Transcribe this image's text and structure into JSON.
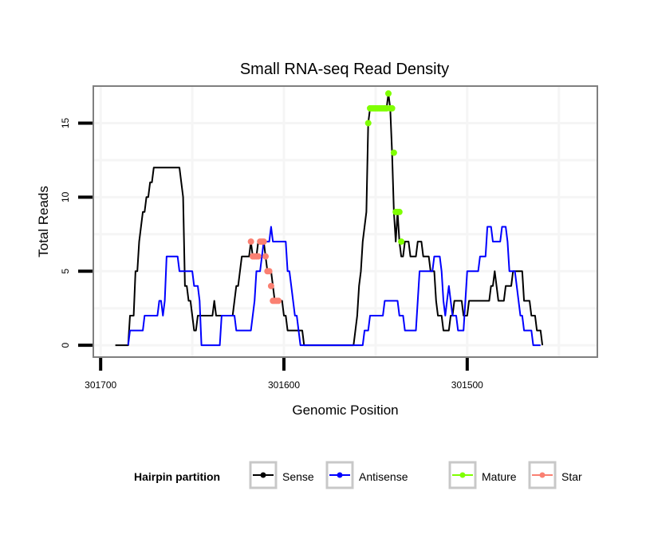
{
  "chart_data": {
    "type": "line",
    "title": "Small RNA-seq Read Density",
    "xlabel": "Genomic Position",
    "ylabel": "Total Reads",
    "x_reversed": true,
    "xlim": [
      301704,
      301429
    ],
    "ylim": [
      -0.8,
      17.5
    ],
    "x_ticks": [
      301700,
      301600,
      301500
    ],
    "x_tick_labels": [
      "301700",
      "301600",
      "301500"
    ],
    "y_ticks": [
      0,
      5,
      10,
      15
    ],
    "y_tick_labels": [
      "0",
      "5",
      "10",
      "15"
    ],
    "grid": true,
    "legend": {
      "title": "Hairpin partition",
      "position": "bottom",
      "entries": [
        {
          "name": "Sense",
          "color": "#000000"
        },
        {
          "name": "Antisense",
          "color": "#0000FF"
        },
        {
          "name": "Mature",
          "color": "#7FFF00"
        },
        {
          "name": "Star",
          "color": "#FA8072"
        }
      ]
    },
    "series": [
      {
        "name": "Sense",
        "color": "#000000",
        "points": [
          [
            301692,
            0
          ],
          [
            301685,
            0
          ],
          [
            301684,
            2
          ],
          [
            301682,
            2
          ],
          [
            301681,
            5
          ],
          [
            301680,
            5
          ],
          [
            301679,
            7
          ],
          [
            301678,
            8
          ],
          [
            301677,
            9
          ],
          [
            301676,
            9
          ],
          [
            301675,
            10
          ],
          [
            301674,
            10
          ],
          [
            301673,
            11
          ],
          [
            301672,
            11
          ],
          [
            301671,
            12
          ],
          [
            301657,
            12
          ],
          [
            301655,
            10
          ],
          [
            301654,
            4
          ],
          [
            301653,
            4
          ],
          [
            301652,
            3
          ],
          [
            301651,
            3
          ],
          [
            301650,
            2
          ],
          [
            301649,
            1
          ],
          [
            301648,
            1
          ],
          [
            301647,
            2
          ],
          [
            301639,
            2
          ],
          [
            301638,
            3
          ],
          [
            301637,
            2
          ],
          [
            301628,
            2
          ],
          [
            301627,
            3
          ],
          [
            301626,
            4
          ],
          [
            301625,
            4
          ],
          [
            301624,
            5
          ],
          [
            301623,
            6
          ],
          [
            301619,
            6
          ],
          [
            301618,
            7
          ],
          [
            301617,
            6
          ],
          [
            301615,
            6
          ],
          [
            301614,
            7
          ],
          [
            301611,
            7
          ],
          [
            301610,
            6
          ],
          [
            301609,
            5
          ],
          [
            301607,
            5
          ],
          [
            301606,
            4
          ],
          [
            301605,
            3
          ],
          [
            301601,
            3
          ],
          [
            301600,
            2
          ],
          [
            301599,
            2
          ],
          [
            301598,
            1
          ],
          [
            301590,
            1
          ],
          [
            301589,
            0
          ],
          [
            301562,
            0
          ],
          [
            301561,
            1
          ],
          [
            301560,
            2
          ],
          [
            301559,
            4
          ],
          [
            301558,
            5
          ],
          [
            301557,
            7
          ],
          [
            301556,
            8
          ],
          [
            301555,
            9
          ],
          [
            301554,
            15
          ],
          [
            301553,
            16
          ],
          [
            301544,
            16
          ],
          [
            301543,
            17
          ],
          [
            301542,
            16
          ],
          [
            301541,
            13
          ],
          [
            301540,
            9
          ],
          [
            301539,
            7
          ],
          [
            301538,
            9
          ],
          [
            301537,
            7
          ],
          [
            301536,
            6
          ],
          [
            301535,
            6
          ],
          [
            301534,
            7
          ],
          [
            301532,
            7
          ],
          [
            301531,
            6
          ],
          [
            301528,
            6
          ],
          [
            301527,
            7
          ],
          [
            301525,
            7
          ],
          [
            301524,
            6
          ],
          [
            301521,
            6
          ],
          [
            301520,
            5
          ],
          [
            301518,
            5
          ],
          [
            301517,
            3
          ],
          [
            301516,
            2
          ],
          [
            301515,
            2
          ],
          [
            301514,
            2
          ],
          [
            301513,
            1
          ],
          [
            301510,
            1
          ],
          [
            301509,
            2
          ],
          [
            301508,
            2
          ],
          [
            301507,
            3
          ],
          [
            301503,
            3
          ],
          [
            301502,
            2
          ],
          [
            301500,
            2
          ],
          [
            301499,
            3
          ],
          [
            301488,
            3
          ],
          [
            301487,
            4
          ],
          [
            301486,
            4
          ],
          [
            301485,
            5
          ],
          [
            301484,
            4
          ],
          [
            301483,
            3
          ],
          [
            301480,
            3
          ],
          [
            301479,
            4
          ],
          [
            301476,
            4
          ],
          [
            301475,
            5
          ],
          [
            301470,
            5
          ],
          [
            301469,
            3
          ],
          [
            301466,
            3
          ],
          [
            301465,
            2
          ],
          [
            301463,
            2
          ],
          [
            301462,
            1
          ],
          [
            301460,
            1
          ],
          [
            301459,
            0
          ]
        ]
      },
      {
        "name": "Antisense",
        "color": "#0000FF",
        "points": [
          [
            301685,
            0
          ],
          [
            301684,
            1
          ],
          [
            301677,
            1
          ],
          [
            301676,
            2
          ],
          [
            301669,
            2
          ],
          [
            301668,
            3
          ],
          [
            301667,
            3
          ],
          [
            301666,
            2
          ],
          [
            301665,
            3
          ],
          [
            301664,
            6
          ],
          [
            301658,
            6
          ],
          [
            301657,
            5
          ],
          [
            301650,
            5
          ],
          [
            301649,
            4
          ],
          [
            301647,
            4
          ],
          [
            301646,
            3
          ],
          [
            301645,
            0
          ],
          [
            301635,
            0
          ],
          [
            301634,
            2
          ],
          [
            301627,
            2
          ],
          [
            301626,
            1
          ],
          [
            301618,
            1
          ],
          [
            301617,
            2
          ],
          [
            301616,
            3
          ],
          [
            301615,
            5
          ],
          [
            301613,
            5
          ],
          [
            301612,
            6
          ],
          [
            301611,
            7
          ],
          [
            301608,
            7
          ],
          [
            301607,
            8
          ],
          [
            301606,
            7
          ],
          [
            301599,
            7
          ],
          [
            301598,
            5
          ],
          [
            301597,
            5
          ],
          [
            301596,
            4
          ],
          [
            301595,
            3
          ],
          [
            301594,
            2
          ],
          [
            301593,
            2
          ],
          [
            301592,
            1
          ],
          [
            301591,
            0
          ],
          [
            301557,
            0
          ],
          [
            301556,
            1
          ],
          [
            301554,
            1
          ],
          [
            301553,
            2
          ],
          [
            301546,
            2
          ],
          [
            301545,
            3
          ],
          [
            301538,
            3
          ],
          [
            301537,
            2
          ],
          [
            301535,
            2
          ],
          [
            301534,
            1
          ],
          [
            301528,
            1
          ],
          [
            301527,
            3
          ],
          [
            301526,
            5
          ],
          [
            301519,
            5
          ],
          [
            301518,
            6
          ],
          [
            301515,
            6
          ],
          [
            301514,
            5
          ],
          [
            301513,
            3
          ],
          [
            301512,
            2
          ],
          [
            301511,
            3
          ],
          [
            301510,
            4
          ],
          [
            301509,
            3
          ],
          [
            301508,
            2
          ],
          [
            301506,
            2
          ],
          [
            301505,
            1
          ],
          [
            301502,
            1
          ],
          [
            301501,
            3
          ],
          [
            301500,
            5
          ],
          [
            301494,
            5
          ],
          [
            301493,
            6
          ],
          [
            301490,
            6
          ],
          [
            301489,
            8
          ],
          [
            301487,
            8
          ],
          [
            301486,
            7
          ],
          [
            301482,
            7
          ],
          [
            301481,
            8
          ],
          [
            301479,
            8
          ],
          [
            301478,
            7
          ],
          [
            301477,
            5
          ],
          [
            301474,
            5
          ],
          [
            301473,
            4
          ],
          [
            301472,
            3
          ],
          [
            301471,
            2
          ],
          [
            301470,
            2
          ],
          [
            301469,
            1
          ],
          [
            301465,
            1
          ],
          [
            301464,
            0
          ],
          [
            301460,
            0
          ]
        ]
      },
      {
        "name": "Mature",
        "color": "#7FFF00",
        "points": [
          [
            301554,
            15
          ],
          [
            301553,
            16
          ],
          [
            301552,
            16
          ],
          [
            301551,
            16
          ],
          [
            301550,
            16
          ],
          [
            301549,
            16
          ],
          [
            301548,
            16
          ],
          [
            301547,
            16
          ],
          [
            301546,
            16
          ],
          [
            301545,
            16
          ],
          [
            301544,
            16
          ],
          [
            301543,
            17
          ],
          [
            301542,
            16
          ],
          [
            301541,
            16
          ],
          [
            301540,
            13
          ],
          [
            301539,
            9
          ],
          [
            301538,
            9
          ],
          [
            301537,
            9
          ],
          [
            301536,
            7
          ]
        ]
      },
      {
        "name": "Star",
        "color": "#FA8072",
        "points": [
          [
            301618,
            7
          ],
          [
            301617,
            6
          ],
          [
            301616,
            6
          ],
          [
            301615,
            6
          ],
          [
            301614,
            6
          ],
          [
            301613,
            7
          ],
          [
            301612,
            7
          ],
          [
            301611,
            7
          ],
          [
            301610,
            6
          ],
          [
            301609,
            5
          ],
          [
            301608,
            5
          ],
          [
            301607,
            4
          ],
          [
            301606,
            3
          ],
          [
            301605,
            3
          ],
          [
            301604,
            3
          ],
          [
            301603,
            3
          ]
        ]
      }
    ]
  }
}
